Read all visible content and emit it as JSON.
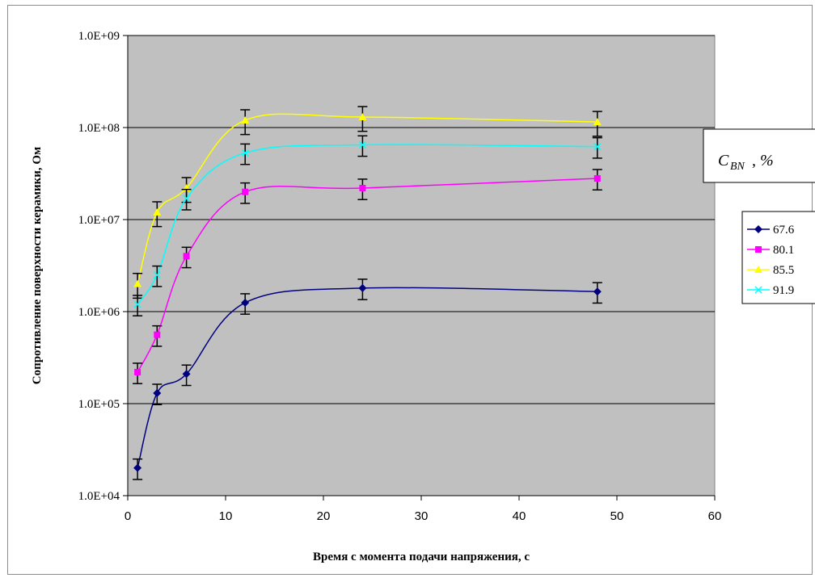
{
  "chart_data": {
    "type": "line",
    "xlabel": "Время с момента подачи напряжения, с",
    "ylabel": "Сопротивление поверхности керамики, Ом",
    "xlim": [
      0,
      60
    ],
    "ylim": [
      10000,
      1000000000
    ],
    "yscale": "log",
    "x_ticks": [
      "0",
      "10",
      "20",
      "30",
      "40",
      "50",
      "60"
    ],
    "y_ticks": [
      "1.0E+04",
      "1.0E+05",
      "1.0E+06",
      "1.0E+07",
      "1.0E+08",
      "1.0E+09"
    ],
    "grid": "horizontal",
    "plot_background": "#c0c0c0",
    "legend_title": {
      "main": "C",
      "subscript": "BN",
      "suffix": ", %"
    },
    "legend_position": "right",
    "x": [
      1,
      3,
      6,
      12,
      24,
      48
    ],
    "series": [
      {
        "name": "67.6",
        "color": "#000080",
        "marker": "diamond",
        "values": [
          20000,
          130000,
          210000,
          1250000,
          1800000,
          1650000
        ],
        "errors": [
          25,
          25,
          25,
          25,
          25,
          25
        ]
      },
      {
        "name": "80.1",
        "color": "#ff00ff",
        "marker": "square",
        "values": [
          220000,
          560000,
          4000000,
          20000000,
          22000000,
          28000000
        ],
        "errors": [
          25,
          25,
          25,
          25,
          25,
          25
        ]
      },
      {
        "name": "85.5",
        "color": "#ffff00",
        "marker": "triangle",
        "values": [
          2000000,
          12000000,
          22000000,
          120000000,
          130000000,
          115000000
        ],
        "errors": [
          30,
          30,
          30,
          30,
          30,
          30
        ]
      },
      {
        "name": "91.9",
        "color": "#00ffff",
        "marker": "x",
        "values": [
          1200000,
          2500000,
          17000000,
          53000000,
          65000000,
          62000000
        ],
        "errors": [
          25,
          25,
          25,
          25,
          25,
          25
        ]
      }
    ]
  }
}
